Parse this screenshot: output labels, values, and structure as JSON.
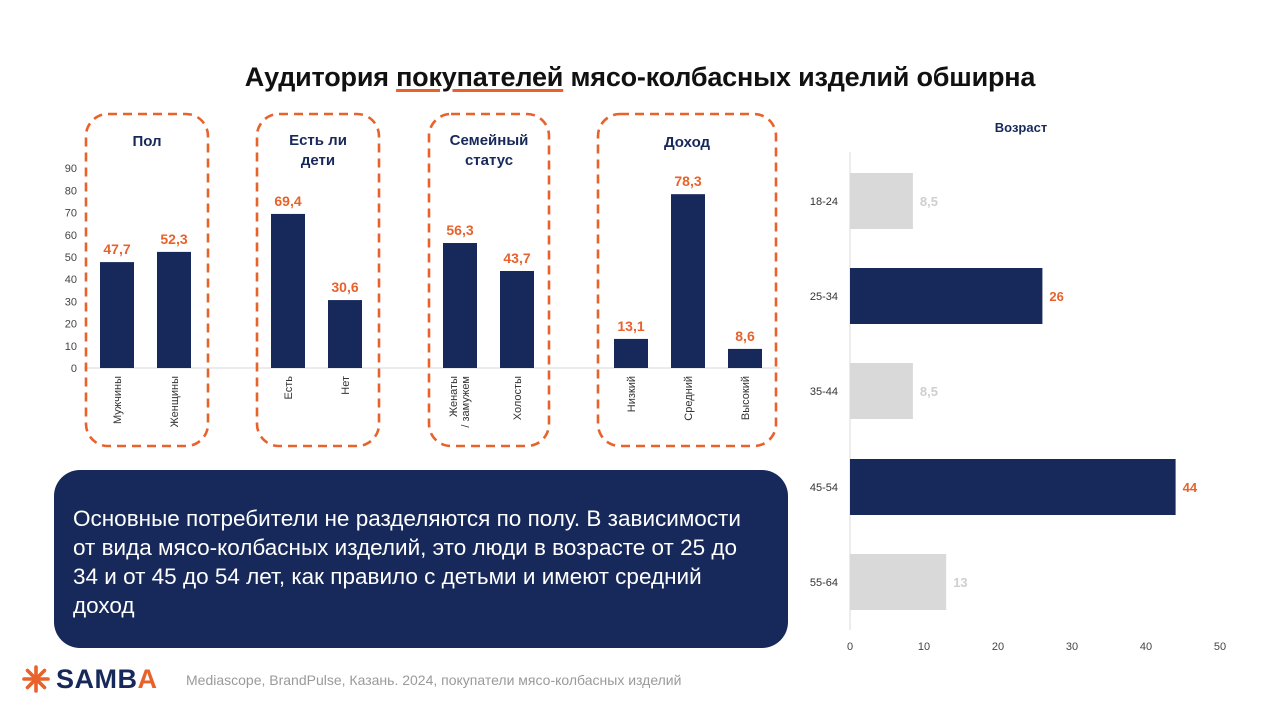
{
  "title_before": "Аудитория ",
  "title_highlight": "покупателей",
  "title_after": " мясо-колбасных изделий обширна",
  "colors": {
    "navy": "#17295a",
    "orange": "#e8622c",
    "gray": "#d9d9d9",
    "grid": "#d9d9d9"
  },
  "chart_data": [
    {
      "type": "bar",
      "orientation": "vertical",
      "y_ticks": [
        "0",
        "10",
        "20",
        "30",
        "40",
        "50",
        "60",
        "70",
        "80",
        "90"
      ],
      "ylim": [
        0,
        90
      ],
      "groups": [
        {
          "label": "Пол",
          "categories": [
            "Мужчины",
            "Женщины"
          ],
          "values": [
            47.7,
            52.3
          ],
          "value_labels": [
            "47,7",
            "52,3"
          ]
        },
        {
          "label": "Есть ли дети",
          "categories": [
            "Есть",
            "Нет"
          ],
          "values": [
            69.4,
            30.6
          ],
          "value_labels": [
            "69,4",
            "30,6"
          ]
        },
        {
          "label": "Семейный статус",
          "categories": [
            "Женаты / замужем",
            "Холосты"
          ],
          "values": [
            56.3,
            43.7
          ],
          "value_labels": [
            "56,3",
            "43,7"
          ]
        },
        {
          "label": "Доход",
          "categories": [
            "Низкий",
            "Средний",
            "Высокий"
          ],
          "values": [
            13.1,
            78.3,
            8.6
          ],
          "value_labels": [
            "13,1",
            "78,3",
            "8,6"
          ]
        }
      ]
    },
    {
      "type": "bar",
      "orientation": "horizontal",
      "title": "Возраст",
      "categories": [
        "18-24",
        "25-34",
        "35-44",
        "45-54",
        "55-64"
      ],
      "values": [
        8.5,
        26,
        8.5,
        44,
        13
      ],
      "value_labels": [
        "8,5",
        "26",
        "8,5",
        "44",
        "13"
      ],
      "highlighted": [
        false,
        true,
        false,
        true,
        false
      ],
      "x_ticks": [
        "0",
        "10",
        "20",
        "30",
        "40",
        "50"
      ],
      "xlim": [
        0,
        50
      ]
    }
  ],
  "note": "Основные потребители не разделяются по полу. В зависимости от вида мясо-колбасных изделий, это люди в возрасте от 25 до 34 и от 45 до 54 лет, как правило с детьми и имеют средний доход",
  "footer": "Mediascope, BrandPulse, Казань. 2024, покупатели мясо-колбасных изделий",
  "logo": {
    "text_main": "SAMB",
    "text_accent": "A",
    "icon": "asterisk-icon"
  }
}
